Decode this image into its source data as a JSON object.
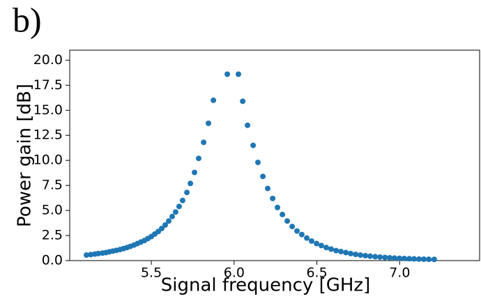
{
  "chart_data": {
    "type": "scatter",
    "panel_label": "b)",
    "x_label": "Signal frequency [GHz]",
    "y_label": "Power gain [dB]",
    "color": "#1f77b4",
    "x": [
      5.108,
      5.134,
      5.159,
      5.18,
      5.205,
      5.226,
      5.247,
      5.268,
      5.289,
      5.311,
      5.332,
      5.353,
      5.374,
      5.395,
      5.416,
      5.437,
      5.458,
      5.479,
      5.5,
      5.521,
      5.542,
      5.563,
      5.584,
      5.605,
      5.626,
      5.647,
      5.668,
      5.689,
      5.715,
      5.736,
      5.761,
      5.786,
      5.816,
      5.845,
      5.875,
      5.959,
      6.026,
      6.052,
      6.081,
      6.115,
      6.144,
      6.174,
      6.203,
      6.233,
      6.262,
      6.292,
      6.321,
      6.351,
      6.38,
      6.409,
      6.439,
      6.468,
      6.498,
      6.527,
      6.557,
      6.586,
      6.616,
      6.645,
      6.675,
      6.704,
      6.734,
      6.763,
      6.793,
      6.822,
      6.852,
      6.881,
      6.911,
      6.94,
      6.969,
      6.999,
      7.028,
      7.058,
      7.087,
      7.117,
      7.146,
      7.176,
      7.209
    ],
    "values": [
      0.55,
      0.6,
      0.65,
      0.7,
      0.75,
      0.8,
      0.88,
      0.95,
      1.02,
      1.1,
      1.2,
      1.3,
      1.42,
      1.55,
      1.7,
      1.85,
      2.0,
      2.2,
      2.4,
      2.65,
      2.9,
      3.2,
      3.55,
      3.95,
      4.4,
      4.85,
      5.4,
      6.0,
      6.8,
      7.7,
      8.8,
      10.2,
      11.8,
      13.7,
      16.0,
      18.6,
      18.6,
      15.9,
      13.5,
      11.5,
      9.8,
      8.4,
      7.2,
      6.2,
      5.3,
      4.6,
      3.95,
      3.4,
      2.95,
      2.6,
      2.25,
      1.95,
      1.7,
      1.5,
      1.3,
      1.15,
      1.0,
      0.9,
      0.8,
      0.7,
      0.62,
      0.55,
      0.49,
      0.44,
      0.39,
      0.35,
      0.31,
      0.28,
      0.25,
      0.23,
      0.21,
      0.19,
      0.17,
      0.15,
      0.14,
      0.13,
      0.12
    ],
    "xlim": [
      5.007,
      7.483
    ],
    "ylim": [
      0,
      21
    ],
    "xticks": [
      5.5,
      {
        "value": 6,
        "label": "6.0"
      },
      6.5,
      {
        "value": 7,
        "label": "7.0"
      }
    ],
    "yticks": [
      {
        "value": 0,
        "label": "0.0"
      },
      2.5,
      {
        "value": 5,
        "label": "5.0"
      },
      7.5,
      {
        "value": 10,
        "label": "10.0"
      },
      12.5,
      {
        "value": 15,
        "label": "15.0"
      },
      17.5,
      {
        "value": 20,
        "label": "20.0"
      }
    ]
  }
}
